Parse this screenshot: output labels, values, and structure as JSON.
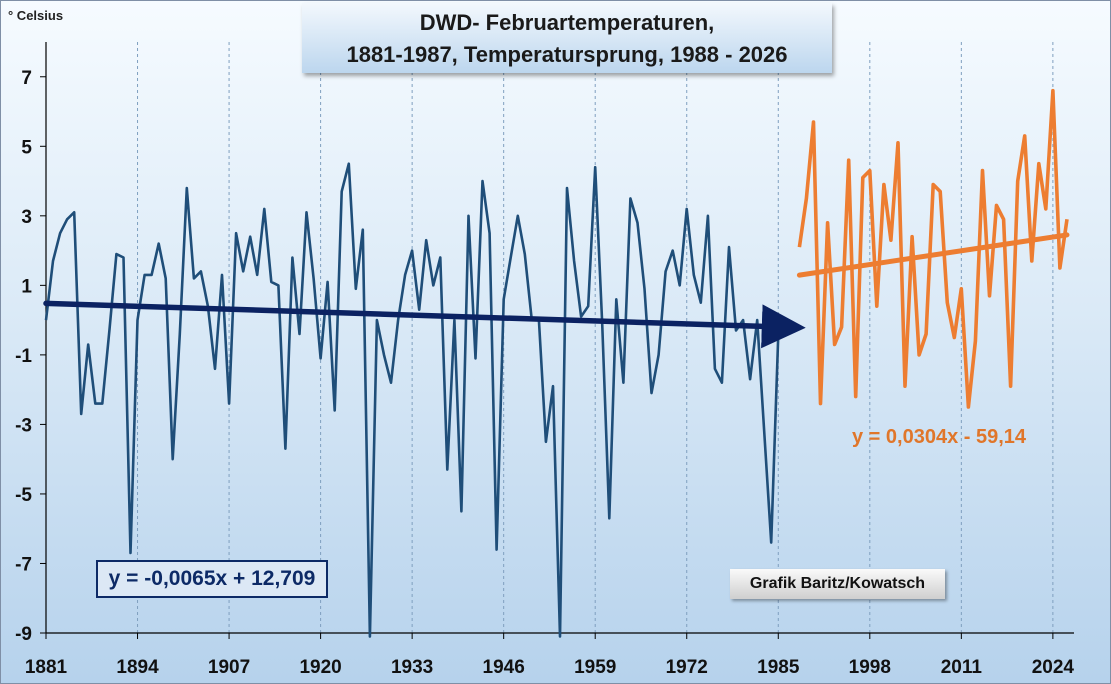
{
  "chart_data": {
    "type": "line",
    "title": [
      "DWD- Februartemperaturen,",
      "1881-1987, Temperatursprung, 1988 - 2026"
    ],
    "ylabel": "° Celsius",
    "xlim": [
      1881,
      2027
    ],
    "ylim": [
      -9,
      8
    ],
    "x_ticks": [
      1881,
      1894,
      1907,
      1920,
      1933,
      1946,
      1959,
      1972,
      1985,
      1998,
      2011,
      2024
    ],
    "y_ticks": [
      7,
      5,
      3,
      1,
      -1,
      -3,
      -5,
      -7,
      -9
    ],
    "grid": "vertical",
    "colors": {
      "series1": "#1f4e79",
      "series2": "#ed7d31",
      "trend1": "#0b2262",
      "trend2": "#ed7d31",
      "equation1": "#0d2a66",
      "equation2": "#e0762a"
    },
    "series": [
      {
        "x_start": 1881,
        "values": [
          0.0,
          1.7,
          2.5,
          2.9,
          3.1,
          -2.7,
          -0.7,
          -2.4,
          -2.4,
          -0.3,
          1.9,
          1.8,
          -6.7,
          0.0,
          1.3,
          1.3,
          2.2,
          1.2,
          -4.0,
          -0.4,
          3.8,
          1.2,
          1.4,
          0.4,
          -1.4,
          1.3,
          -2.4,
          2.5,
          1.4,
          2.4,
          1.3,
          3.2,
          1.1,
          1.0,
          -3.7,
          1.8,
          -0.4,
          3.1,
          1.2,
          -1.1,
          1.1,
          -2.6,
          3.7,
          4.5,
          0.9,
          2.6,
          -9.1,
          0.0,
          -1.0,
          -1.8,
          0.0,
          1.3,
          2.0,
          0.3,
          2.3,
          1.0,
          1.8,
          -4.3,
          0.0,
          -5.5,
          3.0,
          -1.1,
          4.0,
          2.5,
          -6.6,
          0.6,
          1.8,
          3.0,
          1.9,
          0.0,
          0.0,
          -3.5,
          -1.9,
          -9.1,
          3.8,
          1.7,
          0.1,
          0.4,
          4.4,
          -0.1,
          -5.7,
          0.6,
          -1.8,
          3.5,
          2.8,
          0.9,
          -2.1,
          -1.0,
          1.4,
          2.0,
          1.0,
          3.2,
          1.3,
          0.5,
          3.0,
          -1.4,
          -1.8,
          2.1,
          -0.3,
          0.0,
          -1.7,
          0.0,
          -3.2,
          -6.4,
          -0.4
        ]
      },
      {
        "x_start": 1988,
        "values": [
          2.1,
          3.5,
          5.7,
          -2.4,
          2.8,
          -0.7,
          -0.2,
          4.6,
          -2.2,
          4.1,
          4.3,
          0.4,
          3.9,
          2.3,
          5.1,
          -1.9,
          2.4,
          -1.0,
          -0.4,
          3.9,
          3.7,
          0.5,
          -0.5,
          0.9,
          -2.5,
          -0.6,
          4.3,
          0.7,
          3.3,
          2.9,
          -1.9,
          4.0,
          5.3,
          1.7,
          4.5,
          3.2,
          6.6,
          1.5,
          2.9
        ]
      }
    ],
    "trendlines": [
      {
        "equation": "y = -0,0065x + 12,709",
        "slope": -0.0065,
        "intercept": 12.709,
        "x_range": [
          1881,
          1985
        ]
      },
      {
        "equation": "y = 0,0304x - 59,14",
        "slope": 0.0304,
        "intercept": -59.14,
        "x_range": [
          1988,
          2026
        ]
      }
    ],
    "annotations": [
      "Grafik  Baritz/Kowatsch"
    ]
  }
}
